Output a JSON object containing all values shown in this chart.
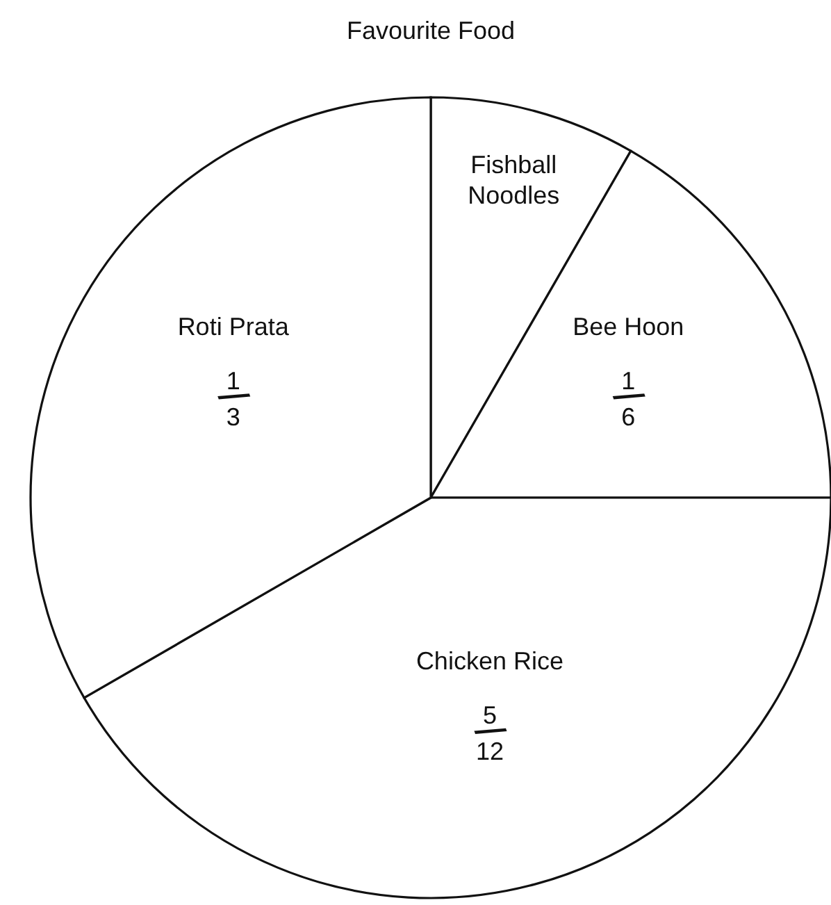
{
  "chart_data": {
    "type": "pie",
    "title": "Favourite Food",
    "categories": [
      "Fishball Noodles",
      "Bee Hoon",
      "Chicken Rice",
      "Roti Prata"
    ],
    "values": [
      0.0833,
      0.1667,
      0.4167,
      0.3333
    ],
    "value_labels": [
      null,
      "1/6",
      "5/12",
      "1/3"
    ],
    "colors": [
      "#ffffff",
      "#ffffff",
      "#ffffff",
      "#ffffff"
    ]
  }
}
